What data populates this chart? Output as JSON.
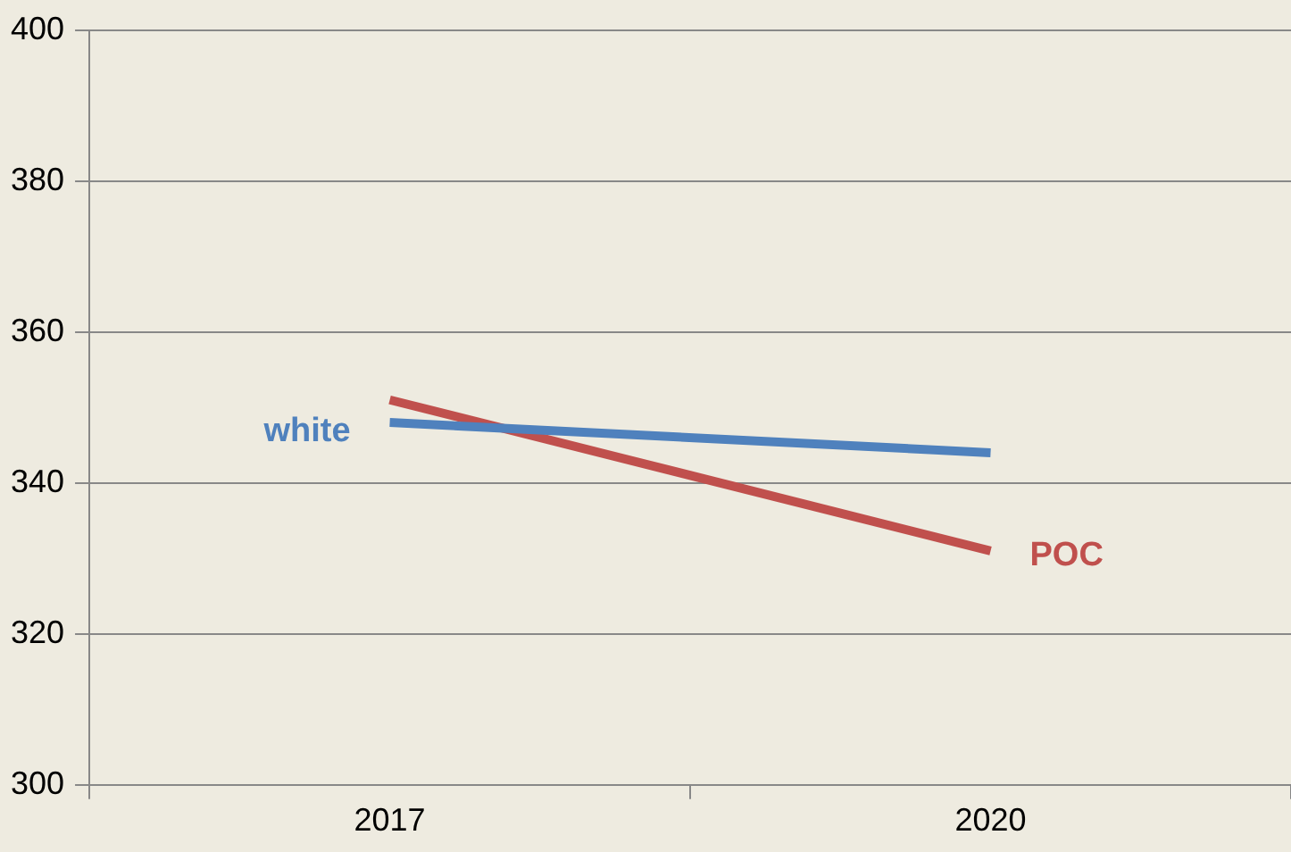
{
  "chart_data": {
    "type": "line",
    "categories": [
      "2017",
      "2020"
    ],
    "series": [
      {
        "name": "white",
        "color": "#4f81bd",
        "values": [
          348,
          344
        ]
      },
      {
        "name": "POC",
        "color": "#c0504d",
        "values": [
          351,
          331
        ]
      }
    ],
    "ylim": [
      300,
      400
    ],
    "yticks": [
      300,
      320,
      340,
      360,
      380,
      400
    ],
    "grid": "y",
    "marker": "none",
    "legend": false
  }
}
